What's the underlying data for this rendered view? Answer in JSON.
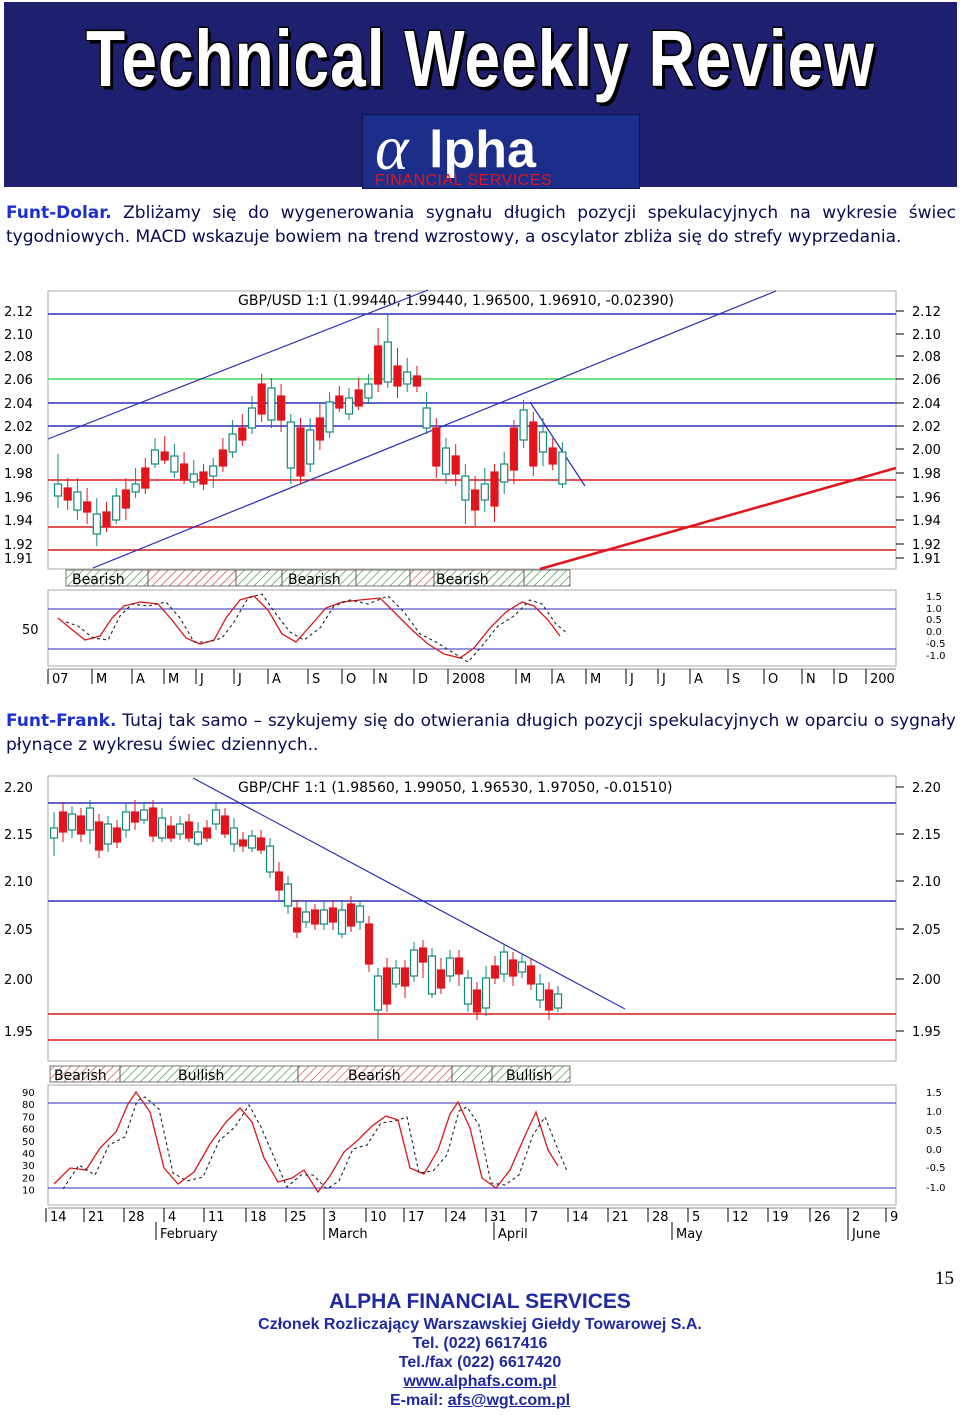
{
  "header": {
    "title": "Technical Weekly Review",
    "logo_text": "lpha",
    "logo_sub": "FINANCIAL SERVICES"
  },
  "section1": {
    "lead": "Funt-Dolar.",
    "text": " Zbliżamy się do wygenerowania sygnału długich pozycji spekulacyjnych na wykresie świec tygodniowych. MACD wskazuje bowiem na trend wzrostowy, a oscylator zbliża się do strefy wyprzedania."
  },
  "chart1": {
    "title": "GBP/USD 1:1 (1.99440, 1.99440, 1.96500, 1.96910, -0.02390)",
    "y_ticks": [
      "2.12",
      "2.10",
      "2.08",
      "2.06",
      "2.04",
      "2.02",
      "2.00",
      "1.98",
      "1.96",
      "1.94",
      "1.92",
      "1.91"
    ],
    "x_ticks": [
      "07",
      "M",
      "A",
      "M",
      "J",
      "J",
      "A",
      "S",
      "O",
      "N",
      "D",
      "2008",
      "M",
      "A",
      "M",
      "J",
      "J",
      "A",
      "S",
      "O",
      "N",
      "D",
      "200"
    ],
    "signal_labels": [
      "Bearish",
      "Bearish",
      "Bearish"
    ],
    "osc_left_tick": "50",
    "osc_right_ticks": [
      "1.5",
      "1.0",
      "0.5",
      "0.0",
      "-0.5",
      "-1.0"
    ]
  },
  "section2": {
    "lead": "Funt-Frank.",
    "text": " Tutaj tak samo – szykujemy się do otwierania długich pozycji spekulacyjnych w oparciu o sygnały płynące z wykresu świec dziennych.."
  },
  "chart2": {
    "title": "GBP/CHF 1:1 (1.98560, 1.99050, 1.96530, 1.97050, -0.01510)",
    "y_ticks": [
      "2.20",
      "2.15",
      "2.10",
      "2.05",
      "2.00",
      "1.95"
    ],
    "x_ticks": [
      "14",
      "21",
      "28",
      "4",
      "11",
      "18",
      "25",
      "3",
      "10",
      "17",
      "24",
      "31",
      "7",
      "14",
      "21",
      "28",
      "5",
      "12",
      "19",
      "26",
      "2",
      "9"
    ],
    "months": [
      "February",
      "March",
      "April",
      "May",
      "June"
    ],
    "signal_labels": [
      "Bearish",
      "Bullish",
      "Bearish",
      "Bullish"
    ],
    "osc_left_ticks": [
      "90",
      "80",
      "70",
      "60",
      "50",
      "40",
      "30",
      "20",
      "10"
    ],
    "osc_right_ticks": [
      "1.5",
      "1.0",
      "0.5",
      "0.0",
      "-0.5",
      "-1.0"
    ]
  },
  "footer": {
    "company": "ALPHA FINANCIAL SERVICES",
    "member": "Członek Rozliczający Warszawskiej Giełdy Towarowej S.A.",
    "tel": "Tel. (022) 6617416",
    "fax": "Tel./fax (022) 6617420",
    "www": "www.alphafs.com.pl",
    "email_label": "E-mail: ",
    "email": "afs@wgt.com.pl",
    "page": "15"
  },
  "colors": {
    "header_bg": "#1e1f6e",
    "bull": "#11887c",
    "bear": "#e2141c",
    "channel": "#2b2fb5",
    "support": "#d91a1a",
    "green_line": "#3bd65b"
  }
}
